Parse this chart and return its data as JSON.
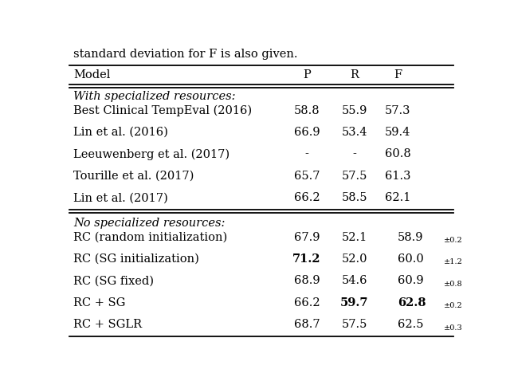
{
  "caption_text": "standard deviation for F is also given.",
  "header": [
    "Model",
    "P",
    "R",
    "F"
  ],
  "section1_label": "With specialized resources:",
  "section1_rows": [
    {
      "model": "Best Clinical TempEval (2016)",
      "P": "58.8",
      "R": "55.9",
      "F": "57.3",
      "bold_P": false,
      "bold_R": false,
      "bold_F": false,
      "F_sub": ""
    },
    {
      "model": "Lin et al. (2016)",
      "P": "66.9",
      "R": "53.4",
      "F": "59.4",
      "bold_P": false,
      "bold_R": false,
      "bold_F": false,
      "F_sub": ""
    },
    {
      "model": "Leeuwenberg et al. (2017)",
      "P": "-",
      "R": "-",
      "F": "60.8",
      "bold_P": false,
      "bold_R": false,
      "bold_F": false,
      "F_sub": ""
    },
    {
      "model": "Tourille et al. (2017)",
      "P": "65.7",
      "R": "57.5",
      "F": "61.3",
      "bold_P": false,
      "bold_R": false,
      "bold_F": false,
      "F_sub": ""
    },
    {
      "model": "Lin et al. (2017)",
      "P": "66.2",
      "R": "58.5",
      "F": "62.1",
      "bold_P": false,
      "bold_R": false,
      "bold_F": false,
      "F_sub": ""
    }
  ],
  "section2_label": "No specialized resources:",
  "section2_rows": [
    {
      "model": "RC (random initialization)",
      "P": "67.9",
      "R": "52.1",
      "F": "58.9",
      "bold_P": false,
      "bold_R": false,
      "bold_F": false,
      "F_sub": "±0.2"
    },
    {
      "model": "RC (SG initialization)",
      "P": "71.2",
      "R": "52.0",
      "F": "60.0",
      "bold_P": true,
      "bold_R": false,
      "bold_F": false,
      "F_sub": "±1.2"
    },
    {
      "model": "RC (SG fixed)",
      "P": "68.9",
      "R": "54.6",
      "F": "60.9",
      "bold_P": false,
      "bold_R": false,
      "bold_F": false,
      "F_sub": "±0.8"
    },
    {
      "model": "RC + SG",
      "P": "66.2",
      "R": "59.7",
      "F": "62.8",
      "bold_P": false,
      "bold_R": true,
      "bold_F": true,
      "F_sub": "±0.2"
    },
    {
      "model": "RC + SGLR",
      "P": "68.7",
      "R": "57.5",
      "F": "62.5",
      "bold_P": false,
      "bold_R": false,
      "bold_F": false,
      "F_sub": "±0.3"
    }
  ],
  "col_x_norm": {
    "Model": 0.025,
    "P": 0.615,
    "R": 0.735,
    "F": 0.845
  },
  "bg_color": "#ffffff",
  "text_color": "#000000",
  "line_color": "#000000",
  "font_size": 10.5,
  "sub_font_size": 7.0
}
